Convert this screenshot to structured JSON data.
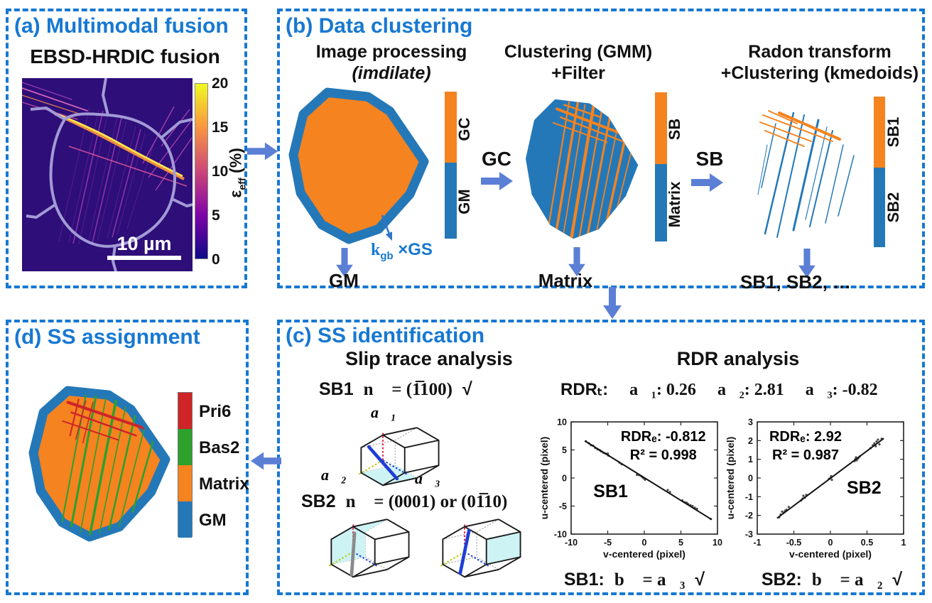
{
  "colors": {
    "accent_blue": "#1778d2",
    "arrow_blue": "#5b7fd5",
    "orange": "#f5831f",
    "band_blue": "#2478b8",
    "red": "#cf2428",
    "green": "#2ca12c"
  },
  "panel_a": {
    "title": "(a) Multimodal fusion",
    "subtitle": "EBSD-HRDIC fusion",
    "scale_bar": "10 µm",
    "colorbar": {
      "label_base": "ε",
      "label_sub": "eff",
      "label_unit": " (%)",
      "ticks": [
        "20",
        "15",
        "10",
        "5",
        "0"
      ]
    }
  },
  "panel_b": {
    "title": "(b) Data clustering",
    "steps": [
      {
        "heading1": "Image processing",
        "heading2": "(imdilate)",
        "cbar_top": "GC",
        "cbar_bottom": "GM",
        "down_label": "GM"
      },
      {
        "heading1": "Clustering (GMM)",
        "heading2": "+Filter",
        "cbar_top": "SB",
        "cbar_bottom": "Matrix",
        "down_label": "Matrix",
        "arrow_label": "GC"
      },
      {
        "heading1": "Radon transform",
        "heading2": "+Clustering (kmedoids)",
        "cbar_top": "SB1",
        "cbar_bottom": "SB2",
        "down_label": "SB1, SB2, …",
        "arrow_label": "SB"
      }
    ],
    "annotation": {
      "k": "k",
      "sub": "gb",
      "rest": " ×GS"
    }
  },
  "panel_c": {
    "title": "(c) SS identification",
    "slip": {
      "heading": "Slip trace analysis",
      "sb1_label": "SB1",
      "sb1_formula": "n⃗ = (1̅100)",
      "sb1_check": "√",
      "a1": "a⃗₁",
      "a2": "a⃗₂",
      "a3": "a⃗₃",
      "sb2_label": "SB2",
      "sb2_formula": "n⃗ = (0001) or (01̅10)"
    },
    "rdr": {
      "heading": "RDR analysis",
      "rdrt_label": "RDRₜ:",
      "items": [
        "a⃗₁: 0.26",
        "a⃗₂: 2.81",
        "a⃗₃: -0.82"
      ],
      "sb1_label": "SB1:",
      "sb1_formula": "b⃗ = a⃗₃",
      "sb1_check": "√",
      "sb2_label": "SB2:",
      "sb2_formula": "b⃗ = a⃗₂",
      "sb2_check": "√"
    }
  },
  "panel_d": {
    "title": "(d) SS assignment",
    "legend": [
      {
        "label": "Pri6",
        "color": "#cf2428"
      },
      {
        "label": "Bas2",
        "color": "#2ca12c"
      },
      {
        "label": "Matrix",
        "color": "#f5831f"
      },
      {
        "label": "GM",
        "color": "#2478b8"
      }
    ]
  },
  "chart_data": [
    {
      "type": "scatter",
      "name": "SB1",
      "xlabel": "v-centered (pixel)",
      "ylabel": "u-centered (pixel)",
      "xlim": [
        -10,
        10
      ],
      "ylim": [
        -10,
        10
      ],
      "xticks": [
        -10,
        -5,
        0,
        5,
        10
      ],
      "yticks": [
        -10,
        -5,
        0,
        5,
        10
      ],
      "fit_line": [
        [
          -8.1,
          6.6
        ],
        [
          9.2,
          -7.4
        ]
      ],
      "rdr_label": "RDRₑ: -0.812",
      "r2_label": "R² = 0.998",
      "ann_pos": [
        0.63,
        0.17
      ],
      "name_pos": [
        0.27,
        0.67
      ],
      "points": [
        [
          -8.0,
          6.55
        ],
        [
          -7.6,
          6.2
        ],
        [
          -7.3,
          5.85
        ],
        [
          -7.0,
          5.75
        ],
        [
          -6.7,
          5.35
        ],
        [
          -6.4,
          5.1
        ],
        [
          -6.1,
          4.95
        ],
        [
          -5.9,
          4.75
        ],
        [
          -5.6,
          4.5
        ],
        [
          -5.3,
          4.35
        ],
        [
          -5.0,
          4.35
        ],
        [
          -4.9,
          4.0
        ],
        [
          -3.4,
          2.75
        ],
        [
          -3.1,
          2.45
        ],
        [
          -1.0,
          0.55
        ],
        [
          -0.7,
          0.5
        ],
        [
          -0.4,
          0.3
        ],
        [
          -0.2,
          0.05
        ],
        [
          0.0,
          -0.15
        ],
        [
          0.1,
          -0.3
        ],
        [
          3.2,
          -2.15
        ],
        [
          3.5,
          -2.5
        ],
        [
          5.2,
          -4.0
        ],
        [
          5.5,
          -4.3
        ],
        [
          5.8,
          -4.4
        ],
        [
          6.0,
          -4.65
        ],
        [
          6.3,
          -4.85
        ],
        [
          6.6,
          -5.0
        ],
        [
          6.9,
          -5.3
        ],
        [
          7.2,
          -5.5
        ],
        [
          9.1,
          -7.3
        ]
      ]
    },
    {
      "type": "scatter",
      "name": "SB2",
      "xlabel": "v-centered (pixel)",
      "ylabel": "u-centered (pixel)",
      "xlim": [
        -1,
        1
      ],
      "ylim": [
        -3,
        3
      ],
      "xticks": [
        -1,
        -0.5,
        0,
        0.5,
        1
      ],
      "yticks": [
        -3,
        -2,
        -1,
        0,
        1,
        2,
        3
      ],
      "fit_line": [
        [
          -0.73,
          -2.15
        ],
        [
          0.73,
          2.12
        ]
      ],
      "rdr_label": "RDRₑ: 2.92",
      "r2_label": "R² = 0.987",
      "ann_pos": [
        0.33,
        0.17
      ],
      "name_pos": [
        0.73,
        0.64
      ],
      "points": [
        [
          -0.7,
          -2.1
        ],
        [
          -0.68,
          -1.95
        ],
        [
          -0.66,
          -1.8
        ],
        [
          -0.64,
          -1.85
        ],
        [
          -0.62,
          -1.75
        ],
        [
          -0.6,
          -1.7
        ],
        [
          -0.57,
          -1.55
        ],
        [
          -0.4,
          -1.2
        ],
        [
          -0.38,
          -1.1
        ],
        [
          -0.37,
          -0.95
        ],
        [
          -0.35,
          -1.05
        ],
        [
          -0.33,
          -0.9
        ],
        [
          -0.02,
          -0.05
        ],
        [
          0.0,
          0.0
        ],
        [
          0.01,
          0.1
        ],
        [
          0.02,
          -0.1
        ],
        [
          0.33,
          0.9
        ],
        [
          0.34,
          1.0
        ],
        [
          0.35,
          1.1
        ],
        [
          0.36,
          0.95
        ],
        [
          0.38,
          1.05
        ],
        [
          0.4,
          1.15
        ],
        [
          0.55,
          1.6
        ],
        [
          0.58,
          1.75
        ],
        [
          0.6,
          1.85
        ],
        [
          0.62,
          1.7
        ],
        [
          0.63,
          1.95
        ],
        [
          0.65,
          2.05
        ],
        [
          0.67,
          1.8
        ],
        [
          0.7,
          2.1
        ]
      ]
    }
  ]
}
